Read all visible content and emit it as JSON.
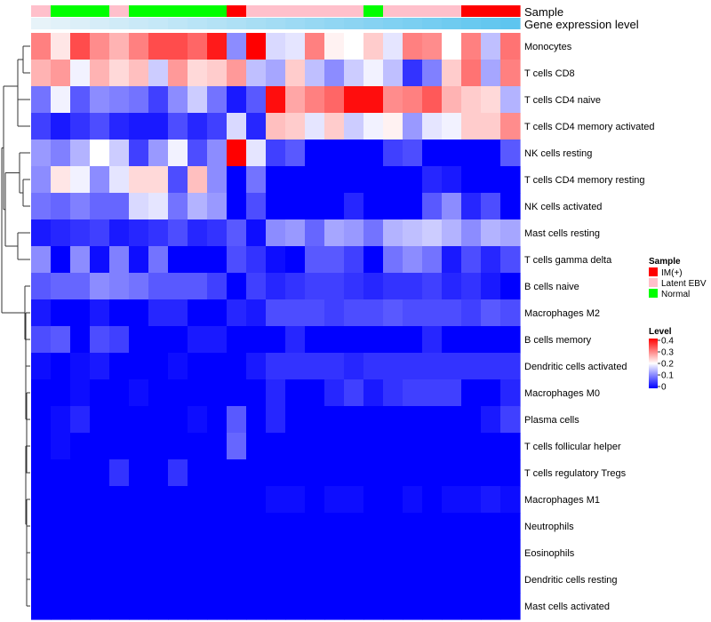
{
  "chart_data": {
    "type": "heatmap",
    "annotation_tracks": [
      {
        "name": "Sample",
        "values": [
          "Latent EBV",
          "Normal",
          "Normal",
          "Normal",
          "Latent EBV",
          "Normal",
          "Normal",
          "Normal",
          "Normal",
          "Normal",
          "IM(+)",
          "Latent EBV",
          "Latent EBV",
          "Latent EBV",
          "Latent EBV",
          "Latent EBV",
          "Latent EBV",
          "Normal",
          "Latent EBV",
          "Latent EBV",
          "Latent EBV",
          "Latent EBV",
          "IM(+)",
          "IM(+)",
          "IM(+)"
        ]
      },
      {
        "name": "Gene expression level",
        "gradient": [
          "#e7f3f9",
          "#5ec5ef"
        ]
      }
    ],
    "rows": [
      "Monocytes",
      "T cells CD8",
      "T cells CD4 naive",
      "T cells CD4 memory activated",
      "NK cells resting",
      "T cells CD4 memory resting",
      "NK cells activated",
      "Mast cells resting",
      "T cells gamma delta",
      "B cells naive",
      "Macrophages M2",
      "B cells memory",
      "Dendritic cells activated",
      "Macrophages M0",
      "Plasma cells",
      "T cells follicular helper",
      "T cells regulatory  Tregs",
      "Macrophages M1",
      "Neutrophils",
      "Eosinophils",
      "Dendritic cells resting",
      "Mast cells activated"
    ],
    "values": [
      [
        0.3,
        0.22,
        0.34,
        0.29,
        0.26,
        0.3,
        0.34,
        0.34,
        0.32,
        0.38,
        0.11,
        0.4,
        0.17,
        0.18,
        0.3,
        0.21,
        0.2,
        0.24,
        0.18,
        0.3,
        0.29,
        0.2,
        0.3,
        0.15,
        0.31
      ],
      [
        0.26,
        0.28,
        0.19,
        0.26,
        0.23,
        0.25,
        0.16,
        0.28,
        0.23,
        0.24,
        0.28,
        0.15,
        0.13,
        0.24,
        0.15,
        0.11,
        0.16,
        0.19,
        0.15,
        0.04,
        0.1,
        0.24,
        0.31,
        0.13,
        0.3
      ],
      [
        0.09,
        0.19,
        0.07,
        0.11,
        0.1,
        0.09,
        0.05,
        0.11,
        0.16,
        0.09,
        0.02,
        0.07,
        0.39,
        0.27,
        0.3,
        0.32,
        0.39,
        0.39,
        0.29,
        0.3,
        0.33,
        0.26,
        0.24,
        0.23,
        0.14
      ],
      [
        0.05,
        0.02,
        0.04,
        0.06,
        0.03,
        0.02,
        0.02,
        0.06,
        0.03,
        0.05,
        0.17,
        0.03,
        0.25,
        0.24,
        0.18,
        0.24,
        0.16,
        0.19,
        0.21,
        0.12,
        0.18,
        0.19,
        0.24,
        0.24,
        0.29
      ],
      [
        0.12,
        0.1,
        0.14,
        0.2,
        0.16,
        0.05,
        0.12,
        0.19,
        0.06,
        0.11,
        0.4,
        0.18,
        0.05,
        0.07,
        0.0,
        0.0,
        0.0,
        0.0,
        0.05,
        0.06,
        0.0,
        0.0,
        0.0,
        0.0,
        0.07
      ],
      [
        0.11,
        0.22,
        0.19,
        0.11,
        0.18,
        0.23,
        0.23,
        0.06,
        0.25,
        0.11,
        0.0,
        0.09,
        0.0,
        0.0,
        0.0,
        0.0,
        0.0,
        0.0,
        0.0,
        0.0,
        0.03,
        0.02,
        0.0,
        0.0,
        0.0
      ],
      [
        0.09,
        0.08,
        0.1,
        0.08,
        0.08,
        0.17,
        0.18,
        0.09,
        0.14,
        0.12,
        0.0,
        0.06,
        0.0,
        0.0,
        0.0,
        0.0,
        0.03,
        0.0,
        0.0,
        0.0,
        0.07,
        0.11,
        0.03,
        0.06,
        0.0
      ],
      [
        0.02,
        0.03,
        0.04,
        0.05,
        0.02,
        0.03,
        0.04,
        0.06,
        0.03,
        0.04,
        0.07,
        0.01,
        0.11,
        0.12,
        0.08,
        0.13,
        0.12,
        0.09,
        0.14,
        0.15,
        0.16,
        0.14,
        0.11,
        0.14,
        0.13
      ],
      [
        0.11,
        0.0,
        0.11,
        0.01,
        0.1,
        0.01,
        0.09,
        0.0,
        0.0,
        0.0,
        0.06,
        0.04,
        0.01,
        0.0,
        0.07,
        0.07,
        0.05,
        0.0,
        0.09,
        0.11,
        0.09,
        0.02,
        0.06,
        0.03,
        0.06
      ],
      [
        0.07,
        0.08,
        0.08,
        0.11,
        0.1,
        0.09,
        0.07,
        0.07,
        0.07,
        0.05,
        0.0,
        0.05,
        0.03,
        0.04,
        0.05,
        0.05,
        0.04,
        0.03,
        0.04,
        0.04,
        0.05,
        0.03,
        0.04,
        0.02,
        0.0
      ],
      [
        0.02,
        0.0,
        0.0,
        0.02,
        0.0,
        0.0,
        0.03,
        0.03,
        0.0,
        0.0,
        0.03,
        0.02,
        0.06,
        0.06,
        0.06,
        0.05,
        0.06,
        0.06,
        0.07,
        0.06,
        0.06,
        0.06,
        0.05,
        0.07,
        0.06
      ],
      [
        0.06,
        0.07,
        0.0,
        0.06,
        0.05,
        0.0,
        0.0,
        0.0,
        0.02,
        0.02,
        0.0,
        0.0,
        0.0,
        0.03,
        0.0,
        0.0,
        0.0,
        0.0,
        0.0,
        0.0,
        0.03,
        0.0,
        0.0,
        0.0,
        0.0
      ],
      [
        0.01,
        0.0,
        0.01,
        0.02,
        0.0,
        0.0,
        0.0,
        0.01,
        0.0,
        0.0,
        0.0,
        0.02,
        0.04,
        0.04,
        0.04,
        0.04,
        0.03,
        0.04,
        0.04,
        0.04,
        0.04,
        0.04,
        0.04,
        0.04,
        0.04
      ],
      [
        0.0,
        0.0,
        0.01,
        0.0,
        0.0,
        0.01,
        0.0,
        0.0,
        0.0,
        0.0,
        0.0,
        0.0,
        0.03,
        0.0,
        0.0,
        0.03,
        0.05,
        0.02,
        0.04,
        0.05,
        0.05,
        0.05,
        0.0,
        0.0,
        0.03
      ],
      [
        0.0,
        0.01,
        0.03,
        0.0,
        0.0,
        0.0,
        0.0,
        0.0,
        0.01,
        0.0,
        0.07,
        0.0,
        0.03,
        0.0,
        0.0,
        0.0,
        0.0,
        0.0,
        0.0,
        0.0,
        0.0,
        0.0,
        0.0,
        0.02,
        0.05
      ],
      [
        0.0,
        0.01,
        0.0,
        0.0,
        0.0,
        0.0,
        0.0,
        0.0,
        0.0,
        0.0,
        0.08,
        0.0,
        0.0,
        0.0,
        0.0,
        0.0,
        0.0,
        0.0,
        0.0,
        0.0,
        0.0,
        0.0,
        0.0,
        0.0,
        0.0
      ],
      [
        0.0,
        0.0,
        0.0,
        0.0,
        0.04,
        0.0,
        0.0,
        0.04,
        0.0,
        0.0,
        0.0,
        0.0,
        0.0,
        0.0,
        0.0,
        0.0,
        0.0,
        0.0,
        0.0,
        0.0,
        0.0,
        0.0,
        0.0,
        0.0,
        0.0
      ],
      [
        0.0,
        0.0,
        0.0,
        0.0,
        0.0,
        0.0,
        0.0,
        0.0,
        0.0,
        0.0,
        0.0,
        0.0,
        0.01,
        0.01,
        0.0,
        0.01,
        0.01,
        0.0,
        0.0,
        0.01,
        0.0,
        0.01,
        0.01,
        0.02,
        0.01
      ],
      [
        0.0,
        0.0,
        0.0,
        0.0,
        0.0,
        0.0,
        0.0,
        0.0,
        0.0,
        0.0,
        0.0,
        0.0,
        0.0,
        0.0,
        0.0,
        0.0,
        0.0,
        0.0,
        0.0,
        0.0,
        0.0,
        0.0,
        0.0,
        0.0,
        0.0
      ],
      [
        0.0,
        0.0,
        0.0,
        0.0,
        0.0,
        0.0,
        0.0,
        0.0,
        0.0,
        0.0,
        0.0,
        0.0,
        0.0,
        0.0,
        0.0,
        0.0,
        0.0,
        0.0,
        0.0,
        0.0,
        0.0,
        0.0,
        0.0,
        0.0,
        0.0
      ],
      [
        0.0,
        0.0,
        0.0,
        0.0,
        0.0,
        0.0,
        0.0,
        0.0,
        0.0,
        0.0,
        0.0,
        0.0,
        0.0,
        0.0,
        0.0,
        0.0,
        0.0,
        0.0,
        0.0,
        0.0,
        0.0,
        0.0,
        0.0,
        0.0,
        0.0
      ],
      [
        0.0,
        0.0,
        0.0,
        0.0,
        0.0,
        0.0,
        0.0,
        0.0,
        0.0,
        0.0,
        0.0,
        0.0,
        0.0,
        0.0,
        0.0,
        0.0,
        0.0,
        0.0,
        0.0,
        0.0,
        0.0,
        0.0,
        0.0,
        0.0,
        0.0
      ]
    ],
    "color_scale": {
      "low": "#0000ff",
      "mid": "#ffffff",
      "high": "#ff0000",
      "range": [
        0,
        0.4
      ],
      "midpoint": 0.2
    },
    "legend": {
      "sample_title": "Sample",
      "sample_entries": [
        {
          "label": "IM(+)",
          "color": "#ff0000"
        },
        {
          "label": "Latent EBV",
          "color": "#ffc0cb"
        },
        {
          "label": "Normal",
          "color": "#00ff00"
        }
      ],
      "level_title": "Level",
      "level_ticks": [
        "0.4",
        "0.3",
        "0.2",
        "0.1",
        "0"
      ],
      "placement": "right"
    },
    "row_dendrogram": true
  }
}
